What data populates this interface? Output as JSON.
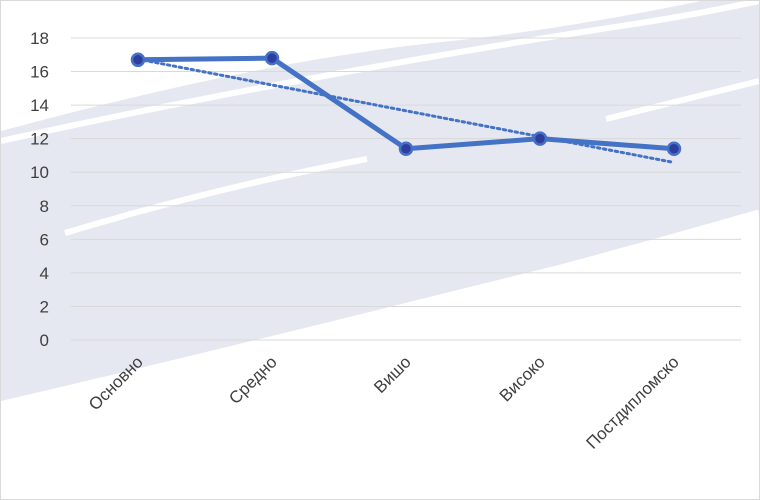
{
  "chart_data": {
    "type": "line",
    "title": "",
    "xlabel": "",
    "ylabel": "",
    "categories": [
      "Основно",
      "Средно",
      "Вишо",
      "Високо",
      "Постдипломско"
    ],
    "series": [
      {
        "values": [
          16.7,
          16.8,
          11.4,
          12.0,
          11.4
        ],
        "color": "#4472c4",
        "marker_color": "#2f3e9e"
      }
    ],
    "trendline": {
      "type": "linear",
      "style": "dotted",
      "color": "#4472c4"
    },
    "ylim": [
      0,
      18
    ],
    "y_ticks": [
      "0",
      "2",
      "4",
      "6",
      "8",
      "10",
      "12",
      "14",
      "16",
      "18"
    ],
    "grid": "horizontal",
    "legend": "none",
    "colors": {
      "background_band": "#e6e8f1",
      "gridline": "#d9d9d9"
    }
  }
}
